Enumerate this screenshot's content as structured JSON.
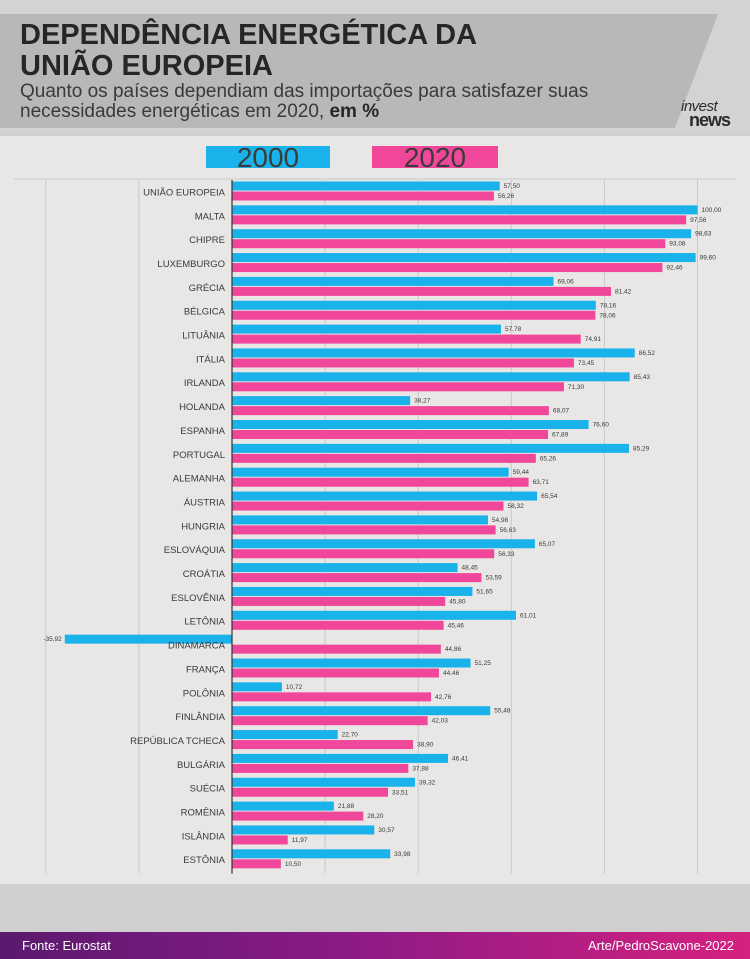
{
  "header": {
    "title_line1": "DEPENDÊNCIA ENERGÉTICA DA",
    "title_line2": "UNIÃO EUROPEIA",
    "subtitle_main": "Quanto os países dependiam das importações para satisfazer suas necessidades energéticas em 2020,",
    "subtitle_bold": "em %",
    "logo_line1": "invest",
    "logo_line2": "news"
  },
  "footer": {
    "source": "Fonte: Eurostat",
    "credit": "Arte/PedroScavone-2022"
  },
  "colors": {
    "series_2000": "#1ab2ea",
    "series_2020": "#f0479b",
    "label_text": "#3a3a3a",
    "gridline": "#c9c9c9",
    "axis": "#333333"
  },
  "chart_data": {
    "type": "bar",
    "orientation": "horizontal",
    "xlim": [
      -40,
      100
    ],
    "grid": true,
    "legend_placement": "top",
    "categories": [
      "UNIÃO EUROPEIA",
      "MALTA",
      "CHIPRE",
      "LUXEMBURGO",
      "GRÉCIA",
      "BÉLGICA",
      "LITUÂNIA",
      "ITÁLIA",
      "IRLANDA",
      "HOLANDA",
      "ESPANHA",
      "PORTUGAL",
      "ALEMANHA",
      "ÁUSTRIA",
      "HUNGRIA",
      "ESLOVÁQUIA",
      "CROÁTIA",
      "ESLOVÊNIA",
      "LETÔNIA",
      "DINAMARCA",
      "FRANÇA",
      "POLÔNIA",
      "FINLÂNDIA",
      "REPÚBLICA TCHECA",
      "BULGÁRIA",
      "SUÉCIA",
      "ROMÊNIA",
      "ISLÂNDIA",
      "ESTÔNIA"
    ],
    "series": [
      {
        "name": "2000",
        "values": [
          57.5,
          100.0,
          98.63,
          99.6,
          69.06,
          78.16,
          57.78,
          86.52,
          85.43,
          38.27,
          76.6,
          85.29,
          59.44,
          65.54,
          54.98,
          65.07,
          48.45,
          51.65,
          61.01,
          -35.92,
          51.25,
          10.72,
          55.48,
          22.7,
          46.41,
          39.32,
          21.88,
          30.57,
          33.98
        ],
        "labels": [
          "57,50",
          "100,00",
          "98,63",
          "99,60",
          "69,06",
          "78,16",
          "57,78",
          "86,52",
          "85,43",
          "38,27",
          "76,60",
          "85,29",
          "59,44",
          "65,54",
          "54,98",
          "65,07",
          "48,45",
          "51,65",
          "61,01",
          "-35,92",
          "51,25",
          "10,72",
          "55,48",
          "22,70",
          "46,41",
          "39,32",
          "21,88",
          "30,57",
          "33,98"
        ]
      },
      {
        "name": "2020",
        "values": [
          56.26,
          97.56,
          93.08,
          92.46,
          81.42,
          78.06,
          74.91,
          73.45,
          71.3,
          68.07,
          67.89,
          65.26,
          63.71,
          58.32,
          56.63,
          56.33,
          53.59,
          45.8,
          45.46,
          44.86,
          44.46,
          42.76,
          42.03,
          38.9,
          37.88,
          33.51,
          28.2,
          11.97,
          10.5
        ],
        "labels": [
          "56,26",
          "97,56",
          "93,08",
          "92,46",
          "81,42",
          "78,06",
          "74,91",
          "73,45",
          "71,30",
          "68,07",
          "67,89",
          "65,26",
          "63,71",
          "58,32",
          "56,63",
          "56,33",
          "53,59",
          "45,80",
          "45,46",
          "44,86",
          "44,46",
          "42,76",
          "42,03",
          "38,90",
          "37,88",
          "33,51",
          "28,20",
          "11,97",
          "10,50"
        ]
      }
    ]
  }
}
